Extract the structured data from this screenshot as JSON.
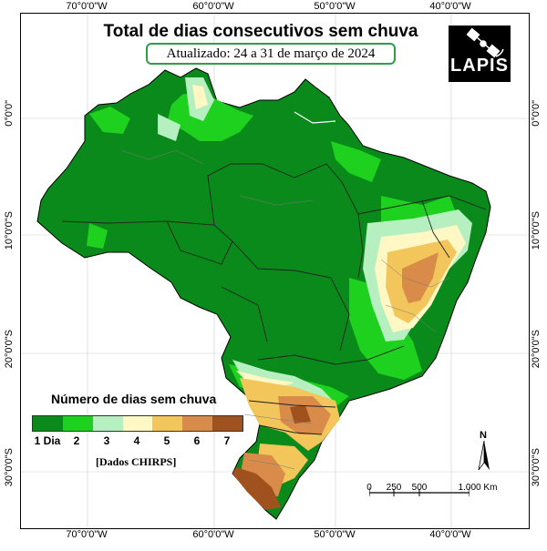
{
  "map": {
    "title": "Total de dias consecutivos sem chuva",
    "subtitle": "Atualizado: 24 a 31 de março de 2024",
    "logo": "LAPIS",
    "source": "[Dados CHIRPS]",
    "longitude_labels": [
      "70°0'0\"W",
      "60°0'0\"W",
      "50°0'0\"W",
      "40°0'0\"W"
    ],
    "latitude_labels": [
      "0°0'0\"",
      "10°0'0\"S",
      "20°0'0\"S",
      "30°0'0\"S"
    ],
    "north_label": "N",
    "scale": {
      "labels": [
        "0",
        "250",
        "500",
        "1.000 Km"
      ]
    },
    "legend": {
      "title": "Número de dias sem chuva",
      "labels": [
        "1 Dia",
        "2",
        "3",
        "4",
        "5",
        "6",
        "7"
      ],
      "colors": [
        "#0a8a1a",
        "#1ed11e",
        "#b6efc0",
        "#fff7c4",
        "#f2c65a",
        "#d98c4a",
        "#a0521e"
      ]
    }
  }
}
